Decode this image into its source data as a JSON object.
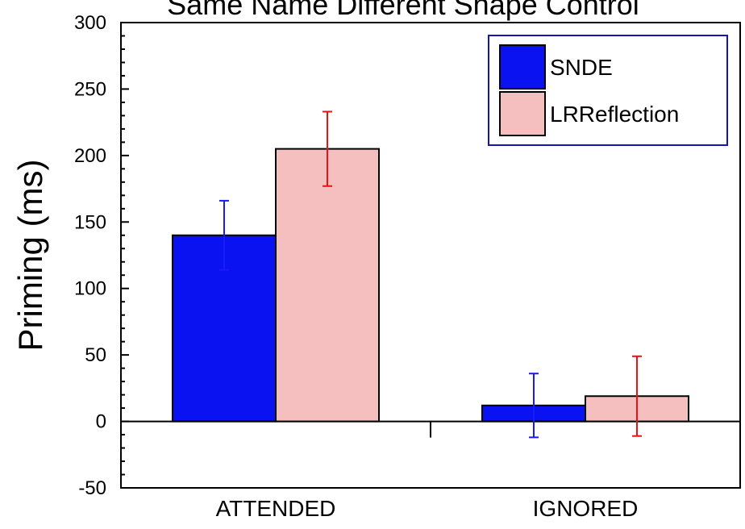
{
  "chart_data": {
    "type": "bar",
    "title": "Same Name Different Shape Control",
    "xlabel": "",
    "ylabel": "Priming (ms)",
    "ylim": [
      -50,
      300
    ],
    "yticks": [
      -50,
      0,
      50,
      100,
      150,
      200,
      250,
      300
    ],
    "categories": [
      "ATTENDED",
      "IGNORED"
    ],
    "series": [
      {
        "name": "SNDE",
        "values": [
          140,
          12
        ],
        "errors": [
          26,
          24
        ],
        "color": "#0a12f2",
        "error_color": "#1a1aff"
      },
      {
        "name": "LRReflection",
        "values": [
          205,
          19
        ],
        "errors": [
          28,
          30
        ],
        "color": "#f5bfbf",
        "error_color": "#ee1111"
      }
    ],
    "grid": false,
    "legend_position": "top-right"
  }
}
